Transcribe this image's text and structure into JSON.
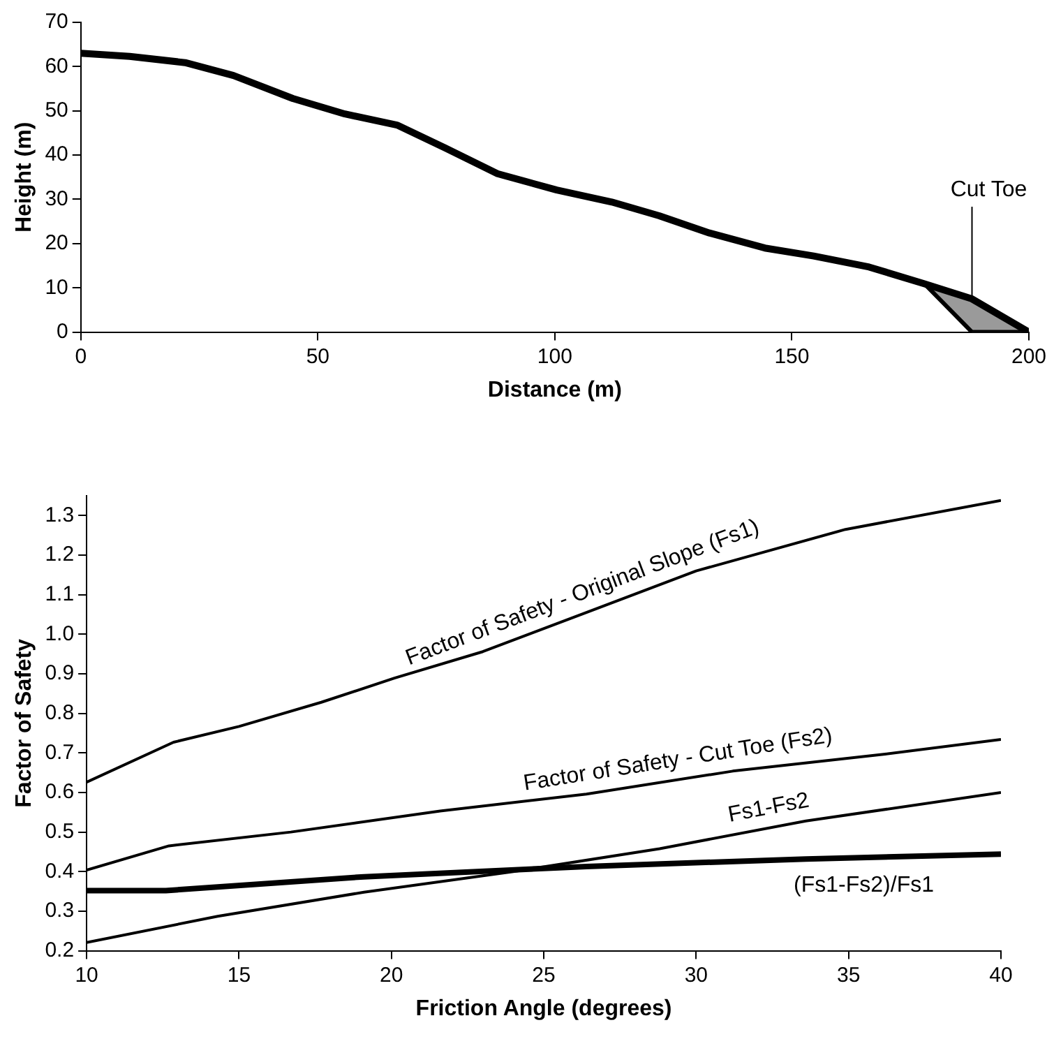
{
  "chart_data": [
    {
      "type": "line",
      "xlabel": "Distance (m)",
      "ylabel": "Height (m)",
      "xlim": [
        0,
        200
      ],
      "xticks": [
        0,
        50,
        100,
        150,
        200
      ],
      "ylim": [
        0,
        70
      ],
      "yticks": [
        0,
        10,
        20,
        30,
        40,
        50,
        60,
        70
      ],
      "marker": "none",
      "line_style": "solid",
      "legend": false,
      "grid": false,
      "series": [
        {
          "color": "#000000",
          "x": [
            0,
            10.3,
            22,
            32.2,
            44.7,
            55.7,
            66.7,
            76.9,
            87.9,
            100.4,
            112,
            122,
            132.6,
            144.3,
            154.6,
            166.3,
            178,
            188,
            200
          ],
          "values": [
            63,
            62.3,
            60.9,
            58,
            52.8,
            49.3,
            46.8,
            41.6,
            35.8,
            32.1,
            29.4,
            26.3,
            22.4,
            19,
            17.2,
            14.7,
            10.9,
            7.5,
            0
          ]
        },
        {
          "type": "area",
          "color": "#9a9a9a",
          "x": [
            178,
            188,
            200,
            188,
            178
          ],
          "values": [
            10.9,
            7.5,
            0,
            0,
            10.9
          ]
        }
      ],
      "annotations": [
        {
          "text": "Cut Toe",
          "x": 188,
          "y": 7.5
        }
      ]
    },
    {
      "type": "line",
      "xlabel": "Friction Angle (degrees)",
      "ylabel": "Factor of Safety",
      "xlim": [
        10,
        40
      ],
      "xticks": [
        10,
        15,
        20,
        25,
        30,
        35,
        40
      ],
      "ylim": [
        0.2,
        1.35
      ],
      "yticks": [
        0.2,
        0.3,
        0.4,
        0.5,
        0.6,
        0.7,
        0.8,
        0.9,
        {
          "value": 1,
          "label": "1.0"
        },
        1.1,
        1.2,
        1.3
      ],
      "marker": "none",
      "line_style": "solid",
      "legend": false,
      "grid": false,
      "series": [
        {
          "name": "Factor of Safety - Original Slope (Fs1)",
          "color": "#000000",
          "x": [
            10,
            12.85,
            15,
            17.7,
            20.1,
            23,
            26.4,
            30,
            34.9,
            40
          ],
          "values": [
            0.626,
            0.727,
            0.767,
            0.828,
            0.889,
            0.956,
            1.055,
            1.16,
            1.265,
            1.338
          ]
        },
        {
          "name": "Factor of Safety - Cut Toe (Fs2)",
          "color": "#000000",
          "x": [
            10,
            12.7,
            16.7,
            21.6,
            26.4,
            31.2,
            36.2,
            40
          ],
          "values": [
            0.404,
            0.465,
            0.5,
            0.553,
            0.596,
            0.654,
            0.697,
            0.734
          ]
        },
        {
          "name": "Fs1-Fs2",
          "color": "#000000",
          "x": [
            10,
            14.3,
            19.1,
            24,
            28.8,
            33.6,
            40
          ],
          "values": [
            0.221,
            0.287,
            0.348,
            0.4,
            0.458,
            0.528,
            0.6
          ]
        },
        {
          "name": "(Fs1-Fs2)/Fs1",
          "color": "#000000",
          "x": [
            10,
            12.6,
            19.1,
            26.4,
            33.6,
            40
          ],
          "values": [
            0.352,
            0.352,
            0.387,
            0.413,
            0.432,
            0.444
          ]
        }
      ]
    }
  ]
}
